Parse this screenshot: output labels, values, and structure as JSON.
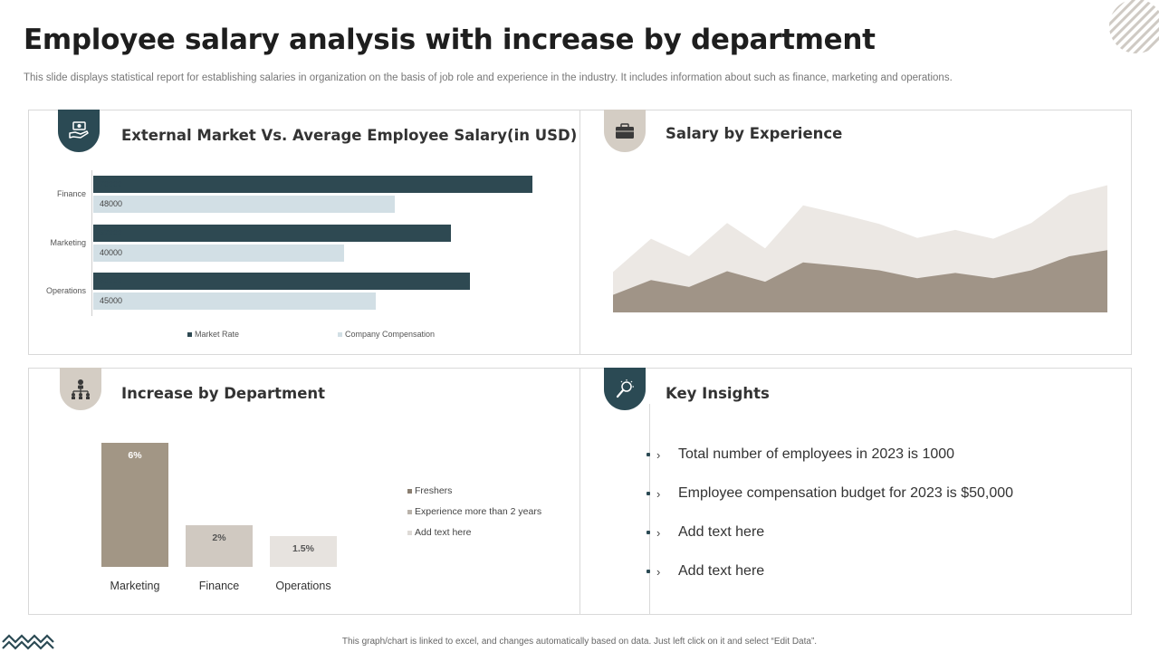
{
  "header": {
    "title": "Employee salary analysis with increase by department",
    "subtitle": "This slide displays statistical report for establishing salaries in organization on the basis of job role and experience in the industry. It includes information about such as finance, marketing and operations."
  },
  "panels": {
    "market": {
      "title": "External Market Vs. Average Employee Salary(in USD)",
      "icon": "money-hand-icon"
    },
    "experience": {
      "title": "Salary by Experience",
      "icon": "briefcase-icon"
    },
    "increase": {
      "title": "Increase by Department",
      "icon": "org-chart-icon"
    },
    "insights": {
      "title": "Key Insights",
      "icon": "lightbulb-search-icon"
    }
  },
  "chart_data": [
    {
      "type": "bar",
      "orientation": "horizontal",
      "categories": [
        "Finance",
        "Marketing",
        "Operations"
      ],
      "series": [
        {
          "name": "Market Rate",
          "color": "#2e4952",
          "values": [
            70000,
            57000,
            60000
          ]
        },
        {
          "name": "Company Compensation",
          "color": "#d2dfe5",
          "values": [
            48000,
            40000,
            45000
          ]
        }
      ],
      "xlim": [
        0,
        75000
      ],
      "legend": "bottom"
    },
    {
      "type": "area",
      "x": [
        1,
        2,
        3,
        4,
        5,
        6,
        7,
        8,
        9,
        10,
        11,
        12,
        13,
        14,
        15,
        16
      ],
      "series": [
        {
          "color": "#a09487",
          "values": [
            20,
            37,
            29,
            47,
            35,
            57,
            53,
            48,
            39,
            45,
            39,
            48,
            64,
            71,
            0,
            0
          ]
        },
        {
          "color": "#ece8e4",
          "values": [
            46,
            84,
            64,
            102,
            73,
            122,
            112,
            101,
            85,
            94,
            84,
            102,
            134,
            145,
            0,
            0
          ]
        }
      ],
      "ylim": [
        0,
        160
      ],
      "grid": false
    },
    {
      "type": "bar",
      "orientation": "vertical",
      "categories": [
        "Marketing",
        "Finance",
        "Operations"
      ],
      "values": [
        6,
        2,
        1.5
      ],
      "labels": [
        "6%",
        "2%",
        "1.5%"
      ],
      "colors": [
        "#a29685",
        "#d0c9c1",
        "#e7e3df"
      ],
      "label_colors": [
        "#ffffff",
        "#555555",
        "#555555"
      ],
      "ylim": [
        0,
        6
      ],
      "legend": [
        "Freshers",
        "Experience more than 2 years",
        "Add text here"
      ],
      "legend_colors": [
        "#8a7e70",
        "#b9b2aa",
        "#dedad6"
      ],
      "legend_position": "right"
    }
  ],
  "insights": [
    "Total number of employees in 2023 is 1000",
    "Employee compensation budget for 2023 is $50,000",
    "Add text here",
    "Add text here"
  ],
  "insight_chevron": "›",
  "footer": "This graph/chart is linked to excel, and changes automatically based on data. Just left click on it and select “Edit Data”."
}
